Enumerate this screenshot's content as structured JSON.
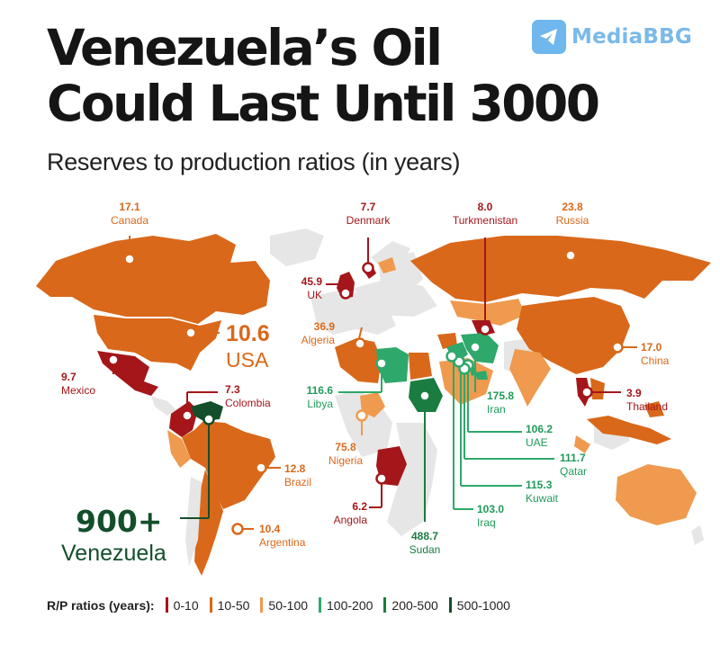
{
  "header": {
    "title_line1": "Venezuela’s Oil",
    "title_line2": "Could Last Until 3000",
    "subtitle": "Reserves to production ratios (in years)"
  },
  "brand": {
    "name": "MediaBBG",
    "icon": "telegram-icon",
    "color": "#7ab9ea"
  },
  "colors": {
    "r0_10": "#a4161a",
    "r10_50": "#d9681a",
    "r50_100": "#ef9a4e",
    "r100_200": "#2fa86b",
    "r200_500": "#1a7c40",
    "r500_1000": "#134f2a",
    "land_other": "#e8e8e8"
  },
  "countries": {
    "canada": {
      "value": "17.1",
      "name": "Canada"
    },
    "denmark": {
      "value": "7.7",
      "name": "Denmark"
    },
    "turkmenistan": {
      "value": "8.0",
      "name": "Turkmenistan"
    },
    "russia": {
      "value": "23.8",
      "name": "Russia"
    },
    "uk": {
      "value": "45.9",
      "name": "UK"
    },
    "algeria": {
      "value": "36.9",
      "name": "Algeria"
    },
    "usa": {
      "value": "10.6",
      "name": "USA"
    },
    "china": {
      "value": "17.0",
      "name": "China"
    },
    "mexico": {
      "value": "9.7",
      "name": "Mexico"
    },
    "colombia": {
      "value": "7.3",
      "name": "Colombia"
    },
    "libya": {
      "value": "116.6",
      "name": "Libya"
    },
    "iran": {
      "value": "175.8",
      "name": "Iran"
    },
    "thailand": {
      "value": "3.9",
      "name": "Thailand"
    },
    "uae": {
      "value": "106.2",
      "name": "UAE"
    },
    "nigeria": {
      "value": "75.8",
      "name": "Nigeria"
    },
    "qatar": {
      "value": "111.7",
      "name": "Qatar"
    },
    "brazil": {
      "value": "12.8",
      "name": "Brazil"
    },
    "kuwait": {
      "value": "115.3",
      "name": "Kuwait"
    },
    "angola": {
      "value": "6.2",
      "name": "Angola"
    },
    "iraq": {
      "value": "103.0",
      "name": "Iraq"
    },
    "venezuela": {
      "value": "900+",
      "name": "Venezuela"
    },
    "argentina": {
      "value": "10.4",
      "name": "Argentina"
    },
    "sudan": {
      "value": "488.7",
      "name": "Sudan"
    }
  },
  "legend": {
    "title": "R/P ratios (years):",
    "items": [
      {
        "label": "0-10",
        "color": "#a4161a"
      },
      {
        "label": "10-50",
        "color": "#d9681a"
      },
      {
        "label": "50-100",
        "color": "#ef9a4e"
      },
      {
        "label": "100-200",
        "color": "#2fa86b"
      },
      {
        "label": "200-500",
        "color": "#1a7c40"
      },
      {
        "label": "500-1000",
        "color": "#134f2a"
      }
    ]
  }
}
